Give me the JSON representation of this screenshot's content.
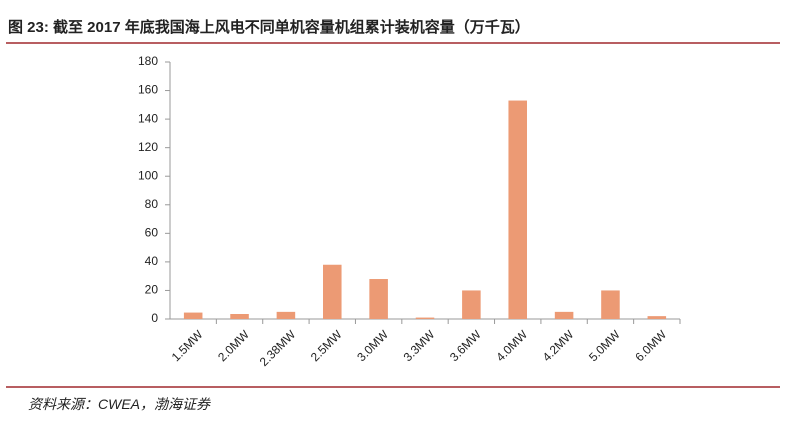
{
  "chart_data": {
    "type": "bar",
    "title": "图 23:  截至 2017 年底我国海上风电不同单机容量机组累计装机容量（万千瓦）",
    "source": "资料来源：CWEA，渤海证券",
    "categories": [
      "1.5MW",
      "2.0MW",
      "2.38MW",
      "2.5MW",
      "3.0MW",
      "3.3MW",
      "3.6MW",
      "4.0MW",
      "4.2MW",
      "5.0MW",
      "6.0MW"
    ],
    "values": [
      4.5,
      3.5,
      5,
      38,
      28,
      1,
      20,
      153,
      5,
      20,
      2
    ],
    "color": "#ec9a74",
    "ylim": [
      0,
      180
    ],
    "yticks": [
      0,
      20,
      40,
      60,
      80,
      100,
      120,
      140,
      160,
      180
    ],
    "grid": false
  }
}
